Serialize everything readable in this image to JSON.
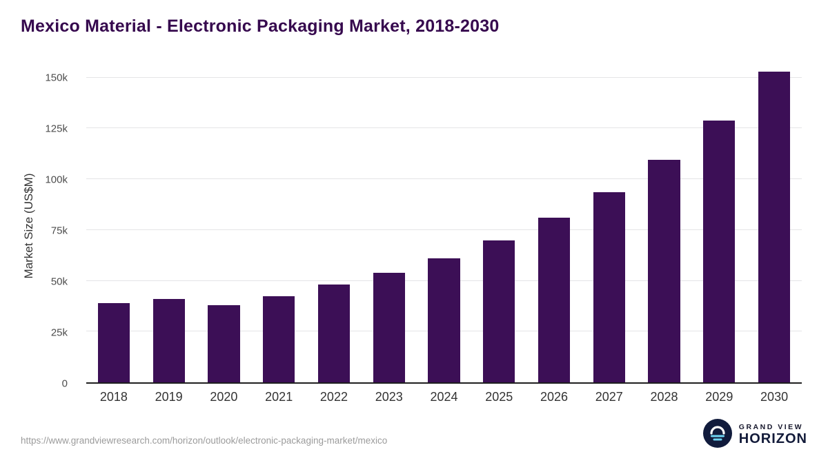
{
  "title": "Mexico Material - Electronic Packaging Market, 2018-2030",
  "chart_data": {
    "type": "bar",
    "title": "Mexico Material - Electronic Packaging Market, 2018-2030",
    "categories": [
      "2018",
      "2019",
      "2020",
      "2021",
      "2022",
      "2023",
      "2024",
      "2025",
      "2026",
      "2027",
      "2028",
      "2029",
      "2030"
    ],
    "values": [
      39000,
      41000,
      38000,
      42500,
      48000,
      54000,
      61000,
      70000,
      81000,
      93500,
      109500,
      129000,
      153000
    ],
    "xlabel": "",
    "ylabel": "Market Size (US$M)",
    "ylim": [
      0,
      155000
    ],
    "yticks": [
      {
        "value": 0,
        "label": "0"
      },
      {
        "value": 25000,
        "label": "25k"
      },
      {
        "value": 50000,
        "label": "50k"
      },
      {
        "value": 75000,
        "label": "75k"
      },
      {
        "value": 100000,
        "label": "100k"
      },
      {
        "value": 125000,
        "label": "125k"
      },
      {
        "value": 150000,
        "label": "150k"
      }
    ],
    "grid": "horizontal",
    "legend": "none",
    "bar_color": "#3c0f56"
  },
  "footer": {
    "source_url": "https://www.grandviewresearch.com/horizon/outlook/electronic-packaging-market/mexico",
    "logo": {
      "icon": "horizon-sun-icon",
      "line1": "GRAND VIEW",
      "line2": "HORIZON"
    }
  }
}
